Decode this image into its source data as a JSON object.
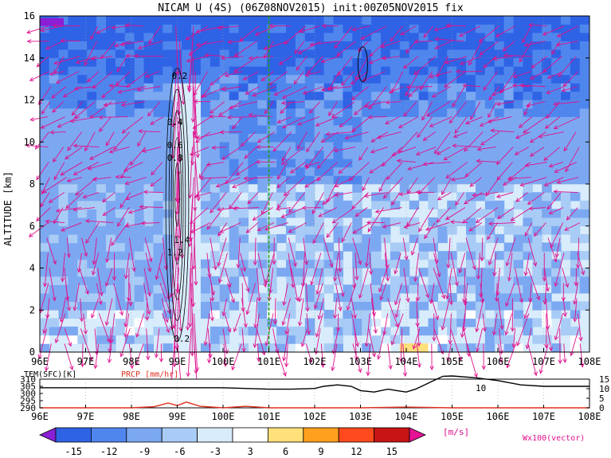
{
  "chart_data": [
    {
      "type": "heatmap",
      "title": "NICAM U (4S) (06Z08NOV2015) init:00Z05NOV2015 fix",
      "ylabel": "ALTITUDE [km]",
      "xlabel": "",
      "x_ticks": [
        "96E",
        "97E",
        "98E",
        "99E",
        "100E",
        "101E",
        "102E",
        "103E",
        "104E",
        "105E",
        "106E",
        "107E",
        "108E"
      ],
      "y_ticks": [
        "0",
        "2",
        "4",
        "6",
        "8",
        "10",
        "12",
        "14",
        "16"
      ],
      "xlim": [
        96,
        108
      ],
      "ylim": [
        0,
        16
      ],
      "grid": true,
      "marker_longitude": 101,
      "contour_labels": [
        {
          "text": "0.2",
          "lon": 99.05,
          "alt": 13.0
        },
        {
          "text": "0.4",
          "lon": 98.95,
          "alt": 10.8
        },
        {
          "text": "0.6",
          "lon": 98.95,
          "alt": 9.7
        },
        {
          "text": "0.8",
          "lon": 98.95,
          "alt": 9.1
        },
        {
          "text": "1.2",
          "lon": 98.95,
          "alt": 4.6
        },
        {
          "text": "1.4",
          "lon": 99.1,
          "alt": 5.2
        },
        {
          "text": "0.2",
          "lon": 99.1,
          "alt": 0.5
        }
      ]
    },
    {
      "type": "line",
      "left_label": "TEM(SFC)[K]",
      "right_label": "PRCP [mm/hr]",
      "left_ticks": [
        "310",
        "305",
        "300",
        "295",
        "290"
      ],
      "right_ticks": [
        "15",
        "10",
        "5",
        "0"
      ],
      "x_ticks": [
        "96E",
        "97E",
        "98E",
        "99E",
        "100E",
        "101E",
        "102E",
        "103E",
        "104E",
        "105E",
        "106E",
        "107E",
        "108E"
      ],
      "ylim_left": [
        290,
        310
      ],
      "ylim_right": [
        0,
        15
      ],
      "annotation": "10",
      "series": [
        {
          "color": "#000000",
          "x": [
            96,
            96.5,
            97,
            97.5,
            98,
            98.5,
            99,
            99.5,
            100,
            100.5,
            101,
            101.5,
            102,
            102.2,
            102.5,
            102.8,
            103,
            103.3,
            103.6,
            103.8,
            104,
            104.2,
            104.4,
            104.6,
            104.8,
            105,
            105.5,
            106,
            106.5,
            107,
            107.5,
            108
          ],
          "y": [
            304,
            304,
            304,
            304,
            304,
            304,
            304,
            304,
            304,
            303.5,
            303,
            303,
            303.5,
            305,
            306,
            305,
            302,
            301,
            303,
            302,
            301,
            303,
            306,
            309,
            312,
            313,
            311,
            309,
            306,
            305,
            305,
            305
          ]
        },
        {
          "color": "#e0301e",
          "x": [
            96,
            97,
            98,
            98.5,
            98.8,
            99.0,
            99.2,
            99.5,
            100,
            100.5,
            101,
            102,
            103,
            104,
            105,
            106,
            107,
            108
          ],
          "y": [
            0,
            0,
            0,
            0.6,
            2.5,
            1.2,
            3.0,
            0.8,
            0,
            0.8,
            0,
            0,
            0,
            0.4,
            0,
            0,
            0,
            0
          ]
        }
      ]
    },
    {
      "type": "table",
      "colorbar_ticks": [
        "-15",
        "-12",
        "-9",
        "-6",
        "-3",
        "3",
        "6",
        "9",
        "12",
        "15"
      ],
      "colorbar_colors": [
        "#8a1fd6",
        "#2f63e6",
        "#4f86ee",
        "#7ca8f2",
        "#a9ccf6",
        "#d8ecfb",
        "#ffffff",
        "#ffe07a",
        "#ffa01e",
        "#ff4a1e",
        "#c81414",
        "#e41494"
      ],
      "unit": "[m/s]",
      "vector_label": "Wx100(vector)"
    }
  ]
}
